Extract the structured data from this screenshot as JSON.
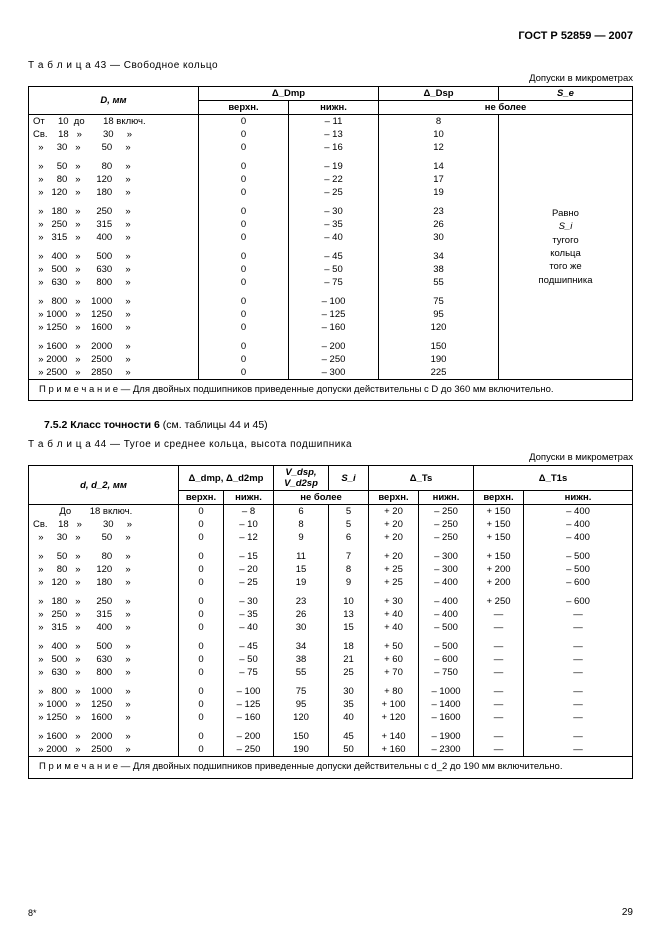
{
  "doc_id": "ГОСТ Р 52859 — 2007",
  "page_number": "29",
  "signature": "8*",
  "table43": {
    "caption": "Т а б л и ц а  43 — Свободное кольцо",
    "units": "Допуски в микрометрах",
    "headers": {
      "D": "D, мм",
      "dDmp": "Δ_Dmp",
      "dDsp": "Δ_Dsp",
      "Se": "S_e",
      "upper": "верхн.",
      "lower": "нижн.",
      "nomore": "не более"
    },
    "groups": [
      [
        {
          "r": "От     10  до       18 включ.",
          "u": "0",
          "l": "– 11",
          "ns": "8"
        },
        {
          "r": "Св.    18   »        30     »",
          "u": "0",
          "l": "– 13",
          "ns": "10"
        },
        {
          "r": "  »     30   »        50     »",
          "u": "0",
          "l": "– 16",
          "ns": "12"
        }
      ],
      [
        {
          "r": "  »     50   »        80     »",
          "u": "0",
          "l": "– 19",
          "ns": "14"
        },
        {
          "r": "  »     80   »      120     »",
          "u": "0",
          "l": "– 22",
          "ns": "17"
        },
        {
          "r": "  »   120   »      180     »",
          "u": "0",
          "l": "– 25",
          "ns": "19"
        }
      ],
      [
        {
          "r": "  »   180   »      250     »",
          "u": "0",
          "l": "– 30",
          "ns": "23"
        },
        {
          "r": "  »   250   »      315     »",
          "u": "0",
          "l": "– 35",
          "ns": "26"
        },
        {
          "r": "  »   315   »      400     »",
          "u": "0",
          "l": "– 40",
          "ns": "30"
        }
      ],
      [
        {
          "r": "  »   400   »      500     »",
          "u": "0",
          "l": "– 45",
          "ns": "34"
        },
        {
          "r": "  »   500   »      630     »",
          "u": "0",
          "l": "– 50",
          "ns": "38"
        },
        {
          "r": "  »   630   »      800     »",
          "u": "0",
          "l": "– 75",
          "ns": "55"
        }
      ],
      [
        {
          "r": "  »   800   »    1000     »",
          "u": "0",
          "l": "– 100",
          "ns": "75"
        },
        {
          "r": "  » 1000   »    1250     »",
          "u": "0",
          "l": "– 125",
          "ns": "95"
        },
        {
          "r": "  » 1250   »    1600     »",
          "u": "0",
          "l": "– 160",
          "ns": "120"
        }
      ],
      [
        {
          "r": "  » 1600   »    2000     »",
          "u": "0",
          "l": "– 200",
          "ns": "150"
        },
        {
          "r": "  » 2000   »    2500     »",
          "u": "0",
          "l": "– 250",
          "ns": "190"
        },
        {
          "r": "  » 2500   »    2850     »",
          "u": "0",
          "l": "– 300",
          "ns": "225"
        }
      ]
    ],
    "se_text": [
      "Равно",
      "S_i",
      "тугого",
      "кольца",
      "того же",
      "подшипника"
    ],
    "note": "П р и м е ч а н и е — Для двойных подшипников приведенные допуски действительны с D до 360 мм включительно."
  },
  "section": {
    "num": "7.5.2",
    "title": "Класс точности 6",
    "ref": "(см. таблицы 44 и 45)"
  },
  "table44": {
    "caption": "Т а б л и ц а  44 — Тугое и среднее кольца, высота подшипника",
    "units": "Допуски в микрометрах",
    "headers": {
      "d": "d, d_2, мм",
      "ddmp": "Δ_dmp, Δ_d2mp",
      "vdsp": "V_dsp, V_d2sp",
      "Si": "S_i",
      "dTs": "Δ_Ts",
      "dT1s": "Δ_T1s",
      "upper": "верхн.",
      "lower": "нижн.",
      "nomore": "не более"
    },
    "groups": [
      [
        {
          "r": "          До       18 включ.",
          "u": "0",
          "l": "– 8",
          "v": "6",
          "s": "5",
          "tu": "+ 20",
          "tl": "– 250",
          "t1u": "+ 150",
          "t1l": "– 400"
        },
        {
          "r": "Св.    18   »        30     »",
          "u": "0",
          "l": "– 10",
          "v": "8",
          "s": "5",
          "tu": "+ 20",
          "tl": "– 250",
          "t1u": "+ 150",
          "t1l": "– 400"
        },
        {
          "r": "  »     30   »        50     »",
          "u": "0",
          "l": "– 12",
          "v": "9",
          "s": "6",
          "tu": "+ 20",
          "tl": "– 250",
          "t1u": "+ 150",
          "t1l": "– 400"
        }
      ],
      [
        {
          "r": "  »     50   »        80     »",
          "u": "0",
          "l": "– 15",
          "v": "11",
          "s": "7",
          "tu": "+ 20",
          "tl": "– 300",
          "t1u": "+ 150",
          "t1l": "– 500"
        },
        {
          "r": "  »     80   »      120     »",
          "u": "0",
          "l": "– 20",
          "v": "15",
          "s": "8",
          "tu": "+ 25",
          "tl": "– 300",
          "t1u": "+ 200",
          "t1l": "– 500"
        },
        {
          "r": "  »   120   »      180     »",
          "u": "0",
          "l": "– 25",
          "v": "19",
          "s": "9",
          "tu": "+ 25",
          "tl": "– 400",
          "t1u": "+ 200",
          "t1l": "– 600"
        }
      ],
      [
        {
          "r": "  »   180   »      250     »",
          "u": "0",
          "l": "– 30",
          "v": "23",
          "s": "10",
          "tu": "+ 30",
          "tl": "– 400",
          "t1u": "+ 250",
          "t1l": "– 600"
        },
        {
          "r": "  »   250   »      315     »",
          "u": "0",
          "l": "– 35",
          "v": "26",
          "s": "13",
          "tu": "+ 40",
          "tl": "– 400",
          "t1u": "—",
          "t1l": "—"
        },
        {
          "r": "  »   315   »      400     »",
          "u": "0",
          "l": "– 40",
          "v": "30",
          "s": "15",
          "tu": "+ 40",
          "tl": "– 500",
          "t1u": "—",
          "t1l": "—"
        }
      ],
      [
        {
          "r": "  »   400   »      500     »",
          "u": "0",
          "l": "– 45",
          "v": "34",
          "s": "18",
          "tu": "+ 50",
          "tl": "– 500",
          "t1u": "—",
          "t1l": "—"
        },
        {
          "r": "  »   500   »      630     »",
          "u": "0",
          "l": "– 50",
          "v": "38",
          "s": "21",
          "tu": "+ 60",
          "tl": "– 600",
          "t1u": "—",
          "t1l": "—"
        },
        {
          "r": "  »   630   »      800     »",
          "u": "0",
          "l": "– 75",
          "v": "55",
          "s": "25",
          "tu": "+ 70",
          "tl": "– 750",
          "t1u": "—",
          "t1l": "—"
        }
      ],
      [
        {
          "r": "  »   800   »    1000     »",
          "u": "0",
          "l": "– 100",
          "v": "75",
          "s": "30",
          "tu": "+ 80",
          "tl": "– 1000",
          "t1u": "—",
          "t1l": "—"
        },
        {
          "r": "  » 1000   »    1250     »",
          "u": "0",
          "l": "– 125",
          "v": "95",
          "s": "35",
          "tu": "+ 100",
          "tl": "– 1400",
          "t1u": "—",
          "t1l": "—"
        },
        {
          "r": "  » 1250   »    1600     »",
          "u": "0",
          "l": "– 160",
          "v": "120",
          "s": "40",
          "tu": "+ 120",
          "tl": "– 1600",
          "t1u": "—",
          "t1l": "—"
        }
      ],
      [
        {
          "r": "  » 1600   »    2000     »",
          "u": "0",
          "l": "– 200",
          "v": "150",
          "s": "45",
          "tu": "+ 140",
          "tl": "– 1900",
          "t1u": "—",
          "t1l": "—"
        },
        {
          "r": "  » 2000   »    2500     »",
          "u": "0",
          "l": "– 250",
          "v": "190",
          "s": "50",
          "tu": "+ 160",
          "tl": "– 2300",
          "t1u": "—",
          "t1l": "—"
        }
      ]
    ],
    "note": "П р и м е ч а н и е — Для двойных подшипников приведенные допуски действительны с d_2 до 190 мм включительно."
  }
}
